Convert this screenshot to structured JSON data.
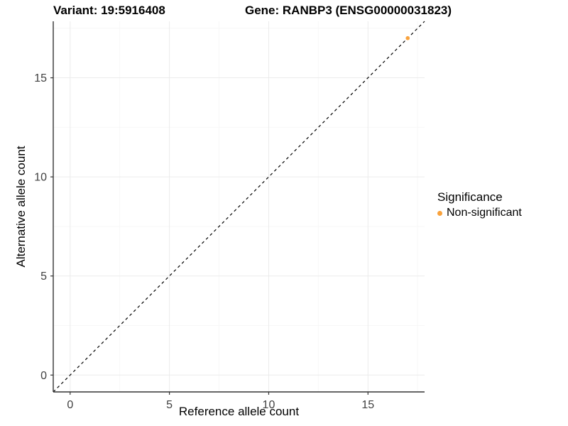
{
  "title": {
    "variant": "Variant: 19:5916408",
    "gene": "Gene: RANBP3 (ENSG00000031823)"
  },
  "axes": {
    "x": {
      "label": "Reference allele count"
    },
    "y": {
      "label": "Alternative allele count"
    }
  },
  "legend": {
    "title": "Significance",
    "items": [
      {
        "label": "Non-significant",
        "color": "#F9A23C"
      }
    ]
  },
  "chart_data": {
    "type": "scatter",
    "title": "Variant: 19:5916408  |  Gene: RANBP3 (ENSG00000031823)",
    "xlabel": "Reference allele count",
    "ylabel": "Alternative allele count",
    "xlim": [
      -0.85,
      17.85
    ],
    "ylim": [
      -0.85,
      17.85
    ],
    "x_ticks": [
      0,
      5,
      10,
      15
    ],
    "y_ticks": [
      0,
      5,
      10,
      15
    ],
    "grid_minor": [
      2.5,
      7.5,
      12.5,
      17.5
    ],
    "grid": "on",
    "legend_position": "right",
    "series": [
      {
        "name": "Non-significant",
        "color": "#F9A23C",
        "points": [
          {
            "x": 17,
            "y": 17
          }
        ]
      }
    ],
    "reference_line": {
      "type": "abline",
      "slope": 1,
      "intercept": 0,
      "style": "dashed",
      "color": "#000000"
    },
    "colors": {
      "grid_major": "#ebebeb",
      "grid_minor": "#f7f7f7",
      "axis_line": "#333333",
      "tick_label": "#404040"
    }
  }
}
